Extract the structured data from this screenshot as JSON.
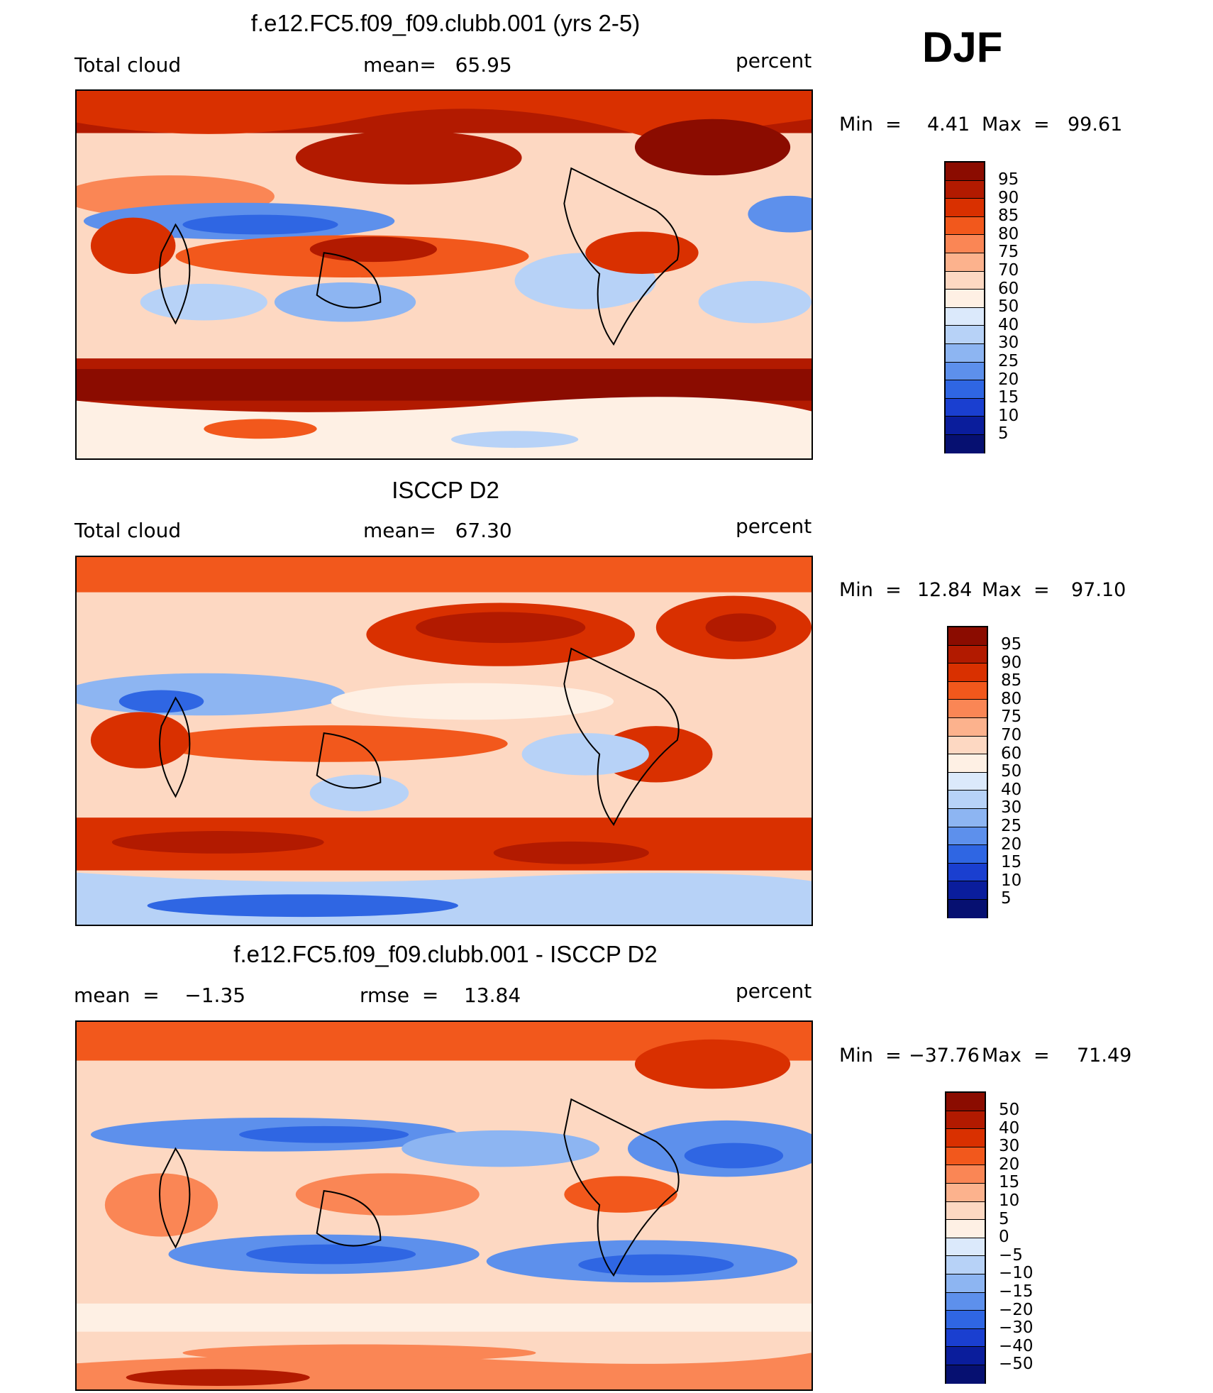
{
  "season": "DJF",
  "panels": [
    {
      "title": "f.e12.FC5.f09_f09.clubb.001 (yrs 2-5)",
      "left_label": "Total cloud",
      "center_label": "mean=   65.95",
      "units": "percent",
      "min_label": "Min  =",
      "min_value": "4.41",
      "max_label": "Max  =",
      "max_value": "99.61",
      "levels": [
        "95",
        "90",
        "85",
        "80",
        "75",
        "70",
        "60",
        "50",
        "40",
        "30",
        "25",
        "20",
        "15",
        "10",
        "5"
      ]
    },
    {
      "title": "ISCCP D2",
      "left_label": "Total cloud",
      "center_label": "mean=   67.30",
      "units": "percent",
      "min_label": "Min  =",
      "min_value": "12.84",
      "max_label": "Max  =",
      "max_value": "97.10",
      "levels": [
        "95",
        "90",
        "85",
        "80",
        "75",
        "70",
        "60",
        "50",
        "40",
        "30",
        "25",
        "20",
        "15",
        "10",
        "5"
      ]
    },
    {
      "title": "f.e12.FC5.f09_f09.clubb.001 - ISCCP D2",
      "left_label": "mean  =    −1.35",
      "center_label": "rmse  =    13.84",
      "units": "percent",
      "min_label": "Min  =",
      "min_value": "−37.76",
      "max_label": "Max  =",
      "max_value": "71.49",
      "levels": [
        "50",
        "40",
        "30",
        "20",
        "15",
        "10",
        "5",
        "0",
        "−5",
        "−10",
        "−15",
        "−20",
        "−30",
        "−40",
        "−50"
      ]
    }
  ],
  "colors": {
    "scale": [
      "#8b0c00",
      "#b21a00",
      "#d93000",
      "#f2581c",
      "#fa8655",
      "#fcb28d",
      "#fdd8c2",
      "#fef0e4",
      "#dbe9fb",
      "#b7d2f7",
      "#8db5f2",
      "#5d90ec",
      "#2f66e3",
      "#1a3fd0",
      "#0a1d9c",
      "#061071"
    ]
  }
}
